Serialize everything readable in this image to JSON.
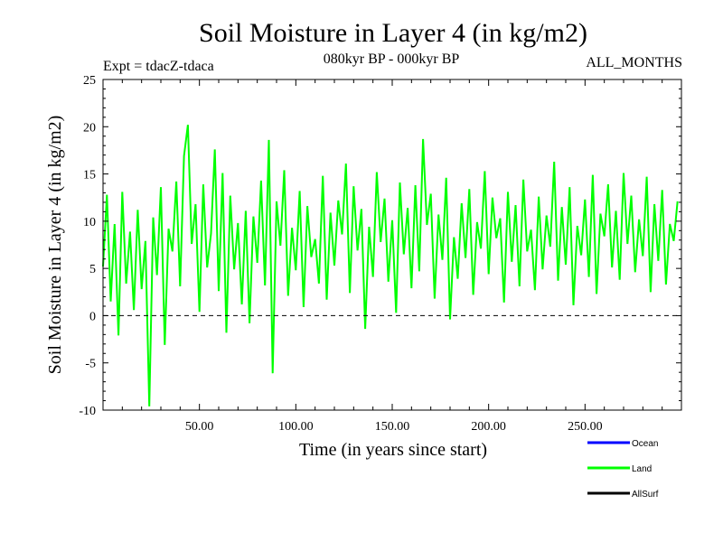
{
  "chart_data": {
    "type": "line",
    "title": "Soil Moisture in Layer 4 (in kg/m2)",
    "subtitle": "080kyr BP - 000kyr BP",
    "experiment": "Expt = tdacZ-tdaca",
    "months": "ALL_MONTHS",
    "xlabel": "Time (in years since start)",
    "ylabel": "Soil Moisture in Layer 4 (in kg/m2)",
    "xlim": [
      0,
      300
    ],
    "ylim": [
      -10,
      25
    ],
    "x_ticks": [
      50,
      100,
      150,
      200,
      250
    ],
    "x_tick_labels": [
      "50.00",
      "100.00",
      "150.00",
      "200.00",
      "250.00"
    ],
    "y_ticks": [
      -10,
      -5,
      0,
      5,
      10,
      15,
      20,
      25
    ],
    "y_tick_labels": [
      "-10",
      "-5",
      "0",
      "5",
      "10",
      "15",
      "20",
      "25"
    ],
    "zero_line": 0,
    "series": [
      {
        "name": "Land",
        "color": "#00ff00",
        "x_start": 0,
        "x_step": 2,
        "values": [
          5.2,
          12.8,
          1.5,
          9.7,
          -2.1,
          13.1,
          3.4,
          8.9,
          0.6,
          11.2,
          2.8,
          7.9,
          -9.6,
          10.4,
          4.3,
          13.6,
          -3.1,
          9.2,
          6.8,
          14.2,
          3.1,
          16.9,
          20.2,
          7.6,
          11.8,
          0.4,
          13.9,
          5.1,
          8.7,
          17.6,
          2.6,
          15.1,
          -1.8,
          12.7,
          4.9,
          9.8,
          1.2,
          11.1,
          -0.8,
          10.5,
          5.6,
          14.3,
          3.2,
          18.6,
          -6.1,
          12.1,
          7.4,
          15.4,
          2.1,
          9.3,
          4.8,
          13.2,
          0.9,
          11.6,
          6.2,
          8.1,
          3.4,
          14.8,
          1.7,
          10.9,
          5.3,
          12.2,
          8.6,
          16.1,
          2.4,
          13.7,
          6.9,
          11.3,
          -1.4,
          9.4,
          4.1,
          15.2,
          7.8,
          12.4,
          3.6,
          10.1,
          0.3,
          14.1,
          6.5,
          11.4,
          2.9,
          13.8,
          4.7,
          18.7,
          9.6,
          12.9,
          1.8,
          10.7,
          5.9,
          14.6,
          -0.4,
          8.3,
          3.9,
          11.9,
          6.1,
          13.4,
          2.2,
          9.9,
          7.1,
          15.3,
          4.4,
          12.5,
          8.2,
          10.3,
          1.4,
          13.1,
          5.7,
          11.7,
          3.1,
          14.4,
          6.8,
          9.1,
          2.7,
          12.6,
          4.9,
          10.6,
          7.3,
          16.3,
          3.7,
          11.5,
          5.4,
          13.6,
          1.1,
          9.5,
          6.4,
          12.3,
          4.1,
          14.9,
          2.3,
          10.8,
          8.4,
          13.9,
          5.1,
          11.1,
          3.8,
          15.1,
          7.6,
          12.7,
          4.6,
          10.2,
          6.3,
          14.7,
          2.5,
          11.8,
          5.8,
          13.3,
          3.3,
          9.7,
          7.9,
          12.1
        ]
      }
    ],
    "legend": [
      {
        "name": "Ocean",
        "color": "#0000ff"
      },
      {
        "name": "Land",
        "color": "#00ff00"
      },
      {
        "name": "AllSurf",
        "color": "#000000"
      }
    ]
  }
}
